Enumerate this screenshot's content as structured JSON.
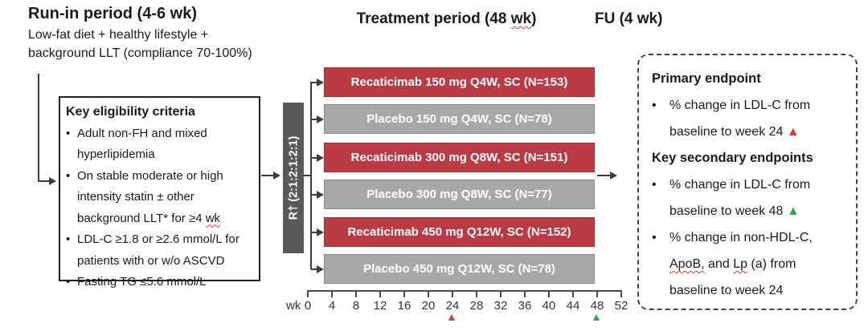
{
  "runin": {
    "title": "Run-in period (4-6 wk)",
    "line1": "Low-fat diet + healthy lifestyle +",
    "line2": "background LLT (compliance 70-100%)"
  },
  "eligibility": {
    "title": "Key eligibility criteria",
    "bullets": [
      {
        "lines": [
          [
            {
              "t": "Adult non-FH and mixed"
            }
          ],
          [
            {
              "t": "hyperlipidemia"
            }
          ]
        ]
      },
      {
        "lines": [
          [
            {
              "t": "On stable moderate or high"
            }
          ],
          [
            {
              "t": "intensity statin ± other"
            }
          ],
          [
            {
              "t": "background LLT* for ≥4 "
            },
            {
              "t": "wk",
              "sq": true
            }
          ]
        ]
      },
      {
        "lines": [
          [
            {
              "t": "LDL-C ≥1.8 or ≥2.6 mmol/L for"
            }
          ],
          [
            {
              "t": "patients with or w/o ASCVD"
            }
          ]
        ]
      },
      {
        "lines": [
          [
            {
              "t": "Fasting TG ≤5.6 mmol/L"
            }
          ]
        ]
      }
    ]
  },
  "treatment": {
    "title_segments": [
      {
        "t": "Treatment period (48 "
      },
      {
        "t": "wk",
        "sq": true
      },
      {
        "t": ")"
      }
    ],
    "randomization_label": "R† (2:1:2:1:2:1)",
    "arms": [
      {
        "label": "Recaticimab 150 mg Q4W, SC (N=153)",
        "type": "active"
      },
      {
        "label": "Placebo 150 mg Q4W, SC (N=78)",
        "type": "placebo"
      },
      {
        "label": "Recaticimab 300 mg Q8W, SC (N=151)",
        "type": "active"
      },
      {
        "label": "Placebo 300 mg Q8W, SC (N=77)",
        "type": "placebo"
      },
      {
        "label": "Recaticimab 450 mg Q12W, SC (N=152)",
        "type": "active"
      },
      {
        "label": "Placebo 450 mg Q12W, SC (N=78)",
        "type": "placebo"
      }
    ]
  },
  "followup": {
    "title": "FU (4 wk)"
  },
  "axis": {
    "unit_label": "wk",
    "ticks": [
      0,
      4,
      8,
      12,
      16,
      20,
      24,
      28,
      32,
      36,
      40,
      44,
      48,
      52
    ],
    "markers": [
      {
        "week": 24,
        "symbol": "▲",
        "color": "#e8392e"
      },
      {
        "week": 48,
        "symbol": "▲",
        "color": "#2ead4b"
      }
    ]
  },
  "endpoints": {
    "sections": [
      {
        "title": "Primary endpoint",
        "bullets": [
          {
            "lines": [
              [
                {
                  "t": "% change in LDL-C from"
                }
              ],
              [
                {
                  "t": "baseline to week 24 "
                },
                {
                  "t": "▲",
                  "c": "#e8392e"
                }
              ]
            ]
          }
        ]
      },
      {
        "title": "Key secondary endpoints",
        "bullets": [
          {
            "lines": [
              [
                {
                  "t": "% change in LDL-C from"
                }
              ],
              [
                {
                  "t": "baseline to week 48 "
                },
                {
                  "t": "▲",
                  "c": "#2ead4b"
                }
              ]
            ]
          },
          {
            "lines": [
              [
                {
                  "t": "% change in non-HDL-C,"
                }
              ],
              [
                {
                  "t": "ApoB,",
                  "sq": true
                },
                {
                  "t": " and "
                },
                {
                  "t": "Lp",
                  "sq": true
                },
                {
                  "t": " (a) from"
                }
              ],
              [
                {
                  "t": "baseline to week 24"
                }
              ]
            ]
          }
        ]
      }
    ]
  },
  "colors": {
    "active_arm": "#ba3b43",
    "placebo_arm": "#a8a8aa",
    "randomization_box": "#595959",
    "connector": "#3c3c3c",
    "week24_marker": "#e8392e",
    "week48_marker": "#2ead4b"
  }
}
